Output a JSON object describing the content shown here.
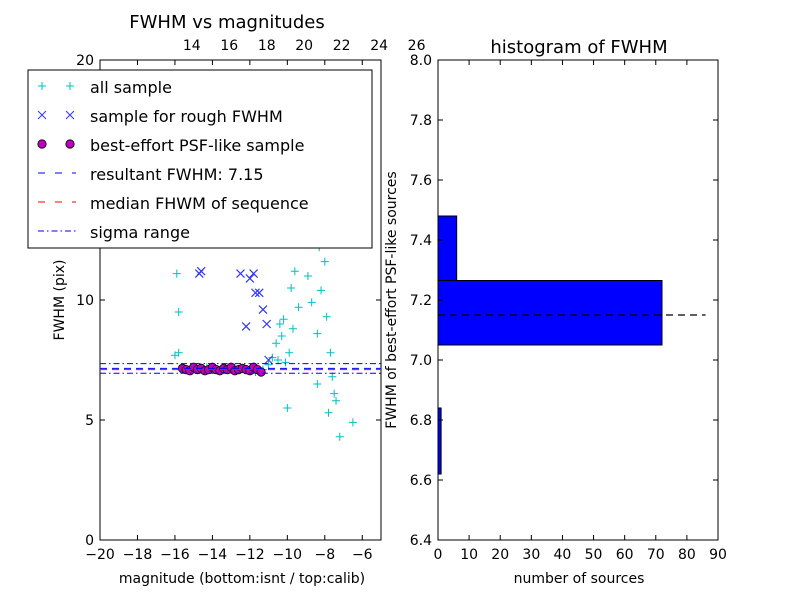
{
  "chart_data": [
    {
      "type": "scatter",
      "title": "FWHM vs magnitudes",
      "xlabel": "magnitude (bottom:isnt / top:calib)",
      "ylabel": "FWHM (pix)",
      "xlim": [
        -20,
        -5
      ],
      "ylim": [
        0,
        20
      ],
      "xticks": [
        "−20",
        "−18",
        "−16",
        "−14",
        "−12",
        "−10",
        "−8",
        "−6"
      ],
      "xtick_values": [
        -20,
        -18,
        -16,
        -14,
        -12,
        -10,
        -8,
        -6
      ],
      "yticks": [
        "0",
        "5",
        "10"
      ],
      "ytick_values": [
        0,
        5,
        10
      ],
      "ytop_label": "20",
      "top_xticks": [
        "14",
        "16",
        "18",
        "20",
        "22",
        "24",
        "26"
      ],
      "top_xtick_values": [
        -15.1,
        -13.1,
        -11.1,
        -9.1,
        -7.1,
        -5.1,
        -3.1
      ],
      "grid": false,
      "legend": {
        "placement": "top-left",
        "entries": [
          "all sample",
          "sample for rough FWHM",
          "best-effort PSF-like sample",
          "resultant FWHM: 7.15",
          "median FHWM of sequence",
          "sigma range"
        ]
      },
      "series": [
        {
          "name": "all sample",
          "marker": "+",
          "color": "#00bfbf",
          "x": [
            -15.9,
            -15.8,
            -16.0,
            -15.7,
            -14.6,
            -14.3,
            -13.5,
            -12.8,
            -12.2,
            -11.7,
            -11.3,
            -11.0,
            -10.8,
            -10.6,
            -10.5,
            -10.4,
            -10.3,
            -10.2,
            -10.1,
            -10.0,
            -9.9,
            -9.8,
            -9.7,
            -9.6,
            -9.5,
            -9.4,
            -9.3,
            -9.2,
            -9.1,
            -9.0,
            -8.9,
            -8.8,
            -8.7,
            -8.6,
            -8.5,
            -8.4,
            -8.3,
            -8.2,
            -8.1,
            -8.0,
            -7.9,
            -7.8,
            -7.7,
            -7.6,
            -7.5,
            -7.4,
            -6.5,
            -7.2,
            -7.8,
            -8.4,
            -9.6,
            -10.0,
            -15.8
          ],
          "y": [
            11.1,
            9.5,
            7.7,
            7.1,
            7.1,
            7.2,
            7.1,
            7.2,
            7.1,
            7.0,
            7.1,
            7.3,
            7.6,
            8.2,
            7.5,
            9.0,
            8.5,
            9.2,
            7.4,
            5.5,
            7.8,
            10.5,
            8.8,
            11.2,
            12.4,
            9.7,
            13.0,
            16.5,
            12.5,
            14.5,
            11.0,
            15.2,
            9.9,
            13.8,
            17.0,
            8.6,
            12.2,
            10.4,
            14.8,
            11.6,
            9.3,
            13.2,
            7.8,
            6.8,
            6.1,
            5.8,
            4.9,
            4.3,
            5.3,
            6.5,
            18.8,
            17.8,
            7.8
          ]
        },
        {
          "name": "sample for rough FWHM",
          "marker": "x",
          "color": "#3333ff",
          "x": [
            -14.7,
            -14.6,
            -12.9,
            -12.5,
            -12.2,
            -11.9,
            -11.8,
            -11.7,
            -11.5,
            -11.3,
            -11.1,
            -11.0,
            -12.0
          ],
          "y": [
            11.1,
            11.2,
            16.1,
            11.1,
            8.9,
            12.8,
            11.1,
            10.3,
            10.3,
            9.6,
            9.0,
            7.5,
            10.9
          ]
        },
        {
          "name": "best-effort PSF-like sample",
          "marker": "o",
          "color": "#bf00bf",
          "x": [
            -15.6,
            -15.4,
            -15.2,
            -15.0,
            -14.8,
            -14.6,
            -14.4,
            -14.2,
            -14.0,
            -13.8,
            -13.6,
            -13.4,
            -13.2,
            -13.0,
            -12.8,
            -12.6,
            -12.4,
            -12.2,
            -12.0,
            -11.8,
            -11.6,
            -11.4
          ],
          "y": [
            7.15,
            7.1,
            7.05,
            7.2,
            7.1,
            7.15,
            7.05,
            7.1,
            7.2,
            7.1,
            7.05,
            7.15,
            7.1,
            7.2,
            7.05,
            7.1,
            7.15,
            7.1,
            7.05,
            7.2,
            7.1,
            7.0
          ]
        }
      ],
      "hlines": [
        {
          "name": "resultant FWHM: 7.15",
          "y": 7.15,
          "color": "#0000ff",
          "style": "dashed"
        },
        {
          "name": "median FHWM of sequence",
          "y": 7.1,
          "color": "#ff0000",
          "style": "dashed"
        },
        {
          "name": "sigma range",
          "y": 7.35,
          "color": "#0000ff",
          "style": "dashdot"
        },
        {
          "name": "sigma range",
          "y": 6.95,
          "color": "#0000ff",
          "style": "dashdot"
        }
      ]
    },
    {
      "type": "bar",
      "orientation": "horizontal",
      "title": "histogram of FWHM",
      "xlabel": "number of sources",
      "ylabel": "FWHM of best-effort PSF-like sources",
      "xlim": [
        0,
        90
      ],
      "ylim": [
        6.4,
        8.0
      ],
      "xticks": [
        "0",
        "10",
        "20",
        "30",
        "40",
        "50",
        "60",
        "70",
        "80",
        "90"
      ],
      "xtick_values": [
        0,
        10,
        20,
        30,
        40,
        50,
        60,
        70,
        80,
        90
      ],
      "yticks": [
        "6.4",
        "6.6",
        "6.8",
        "7.0",
        "7.2",
        "7.4",
        "7.6",
        "7.8",
        "8.0"
      ],
      "ytick_values": [
        6.4,
        6.6,
        6.8,
        7.0,
        7.2,
        7.4,
        7.6,
        7.8,
        8.0
      ],
      "grid": false,
      "bars": [
        {
          "y0": 6.62,
          "y1": 6.84,
          "value": 1,
          "color": "#0000ff"
        },
        {
          "y0": 7.05,
          "y1": 7.265,
          "value": 72,
          "color": "#0000ff"
        },
        {
          "y0": 7.265,
          "y1": 7.48,
          "value": 6,
          "color": "#0000ff"
        }
      ],
      "hline": {
        "y": 7.15,
        "x_end": 86,
        "color": "#000000",
        "style": "dashed"
      }
    }
  ]
}
